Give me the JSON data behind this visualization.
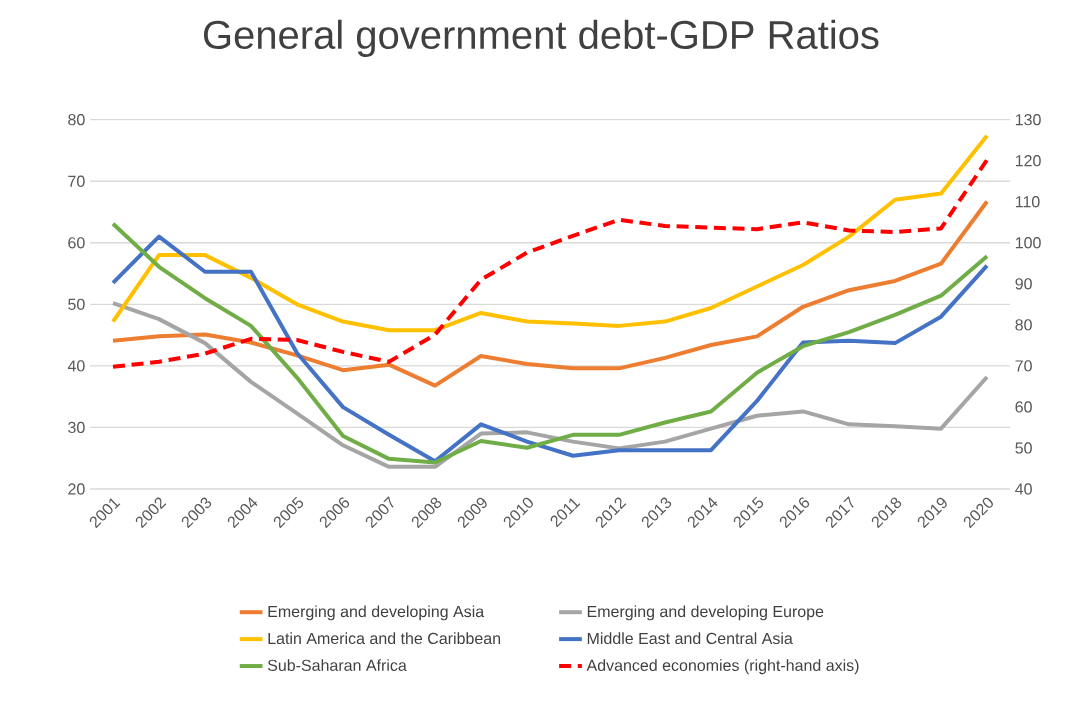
{
  "chart_data": {
    "type": "line",
    "title": "General government debt-GDP Ratios",
    "categories": [
      "2001",
      "2002",
      "2003",
      "2004",
      "2005",
      "2006",
      "2007",
      "2008",
      "2009",
      "2010",
      "2011",
      "2012",
      "2013",
      "2014",
      "2015",
      "2016",
      "2017",
      "2018",
      "2019",
      "2020"
    ],
    "series": [
      {
        "name": "Emerging and developing Asia",
        "color": "#ed7d31",
        "values": [
          44.1,
          44.8,
          45.1,
          43.8,
          41.7,
          39.3,
          40.2,
          36.8,
          41.6,
          40.3,
          39.6,
          39.6,
          41.3,
          43.4,
          44.8,
          49.6,
          52.3,
          53.8,
          56.6,
          66.7
        ]
      },
      {
        "name": "Emerging and developing Europe",
        "color": "#a5a5a5",
        "values": [
          50.2,
          47.6,
          43.7,
          37.4,
          32.3,
          27.1,
          23.6,
          23.6,
          29.0,
          29.2,
          27.7,
          26.6,
          27.7,
          29.8,
          31.9,
          32.6,
          30.5,
          30.2,
          29.8,
          38.2
        ]
      },
      {
        "name": "Latin America and the Caribbean",
        "color": "#ffc000",
        "values": [
          47.2,
          58.0,
          58.0,
          54.3,
          50.0,
          47.2,
          45.8,
          45.8,
          48.6,
          47.2,
          46.9,
          46.5,
          47.2,
          49.4,
          52.9,
          56.4,
          61.0,
          67.0,
          68.0,
          77.4
        ]
      },
      {
        "name": "Middle East and Central Asia",
        "color": "#4472c4",
        "values": [
          53.5,
          61.0,
          55.3,
          55.3,
          42.1,
          33.3,
          28.8,
          24.5,
          30.5,
          27.7,
          25.4,
          26.3,
          26.3,
          26.3,
          34.3,
          43.8,
          44.1,
          43.7,
          48.0,
          56.3
        ]
      },
      {
        "name": "Sub-Saharan Africa",
        "color": "#70ad47",
        "values": [
          63.1,
          56.1,
          51.0,
          46.5,
          38.1,
          28.6,
          24.9,
          24.3,
          27.8,
          26.7,
          28.8,
          28.8,
          30.8,
          32.6,
          38.9,
          43.2,
          45.5,
          48.3,
          51.4,
          57.8
        ]
      },
      {
        "name": "Advanced economies (right-hand axis)",
        "color": "#ff0000",
        "axis": "y2",
        "line_style": "dashed",
        "values": [
          69.8,
          71,
          73,
          76.6,
          76.3,
          73.4,
          71,
          77.6,
          91,
          97.6,
          101.7,
          105.6,
          104.1,
          103.7,
          103.3,
          105,
          103,
          102.6,
          103.5,
          120.2
        ]
      }
    ],
    "ylim": [
      20,
      80
    ],
    "yticks": [
      20,
      30,
      40,
      50,
      60,
      70,
      80
    ],
    "y2lim": [
      40,
      130
    ],
    "y2ticks": [
      40,
      50,
      60,
      70,
      80,
      90,
      100,
      110,
      120,
      130
    ],
    "grid": "y",
    "legend": "bottom"
  }
}
